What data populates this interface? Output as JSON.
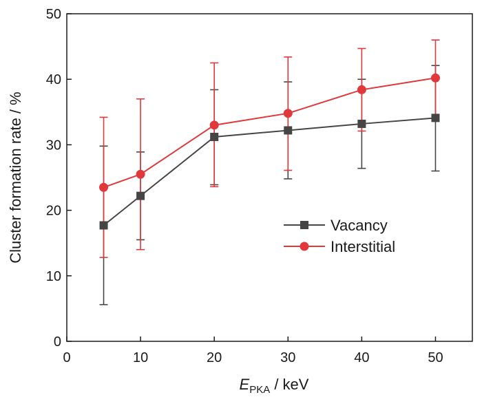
{
  "chart_data": {
    "type": "line",
    "x": [
      5,
      10,
      20,
      30,
      40,
      50
    ],
    "xlim": [
      0,
      55
    ],
    "ylim": [
      0,
      50
    ],
    "xticks": [
      "0",
      "10",
      "20",
      "30",
      "40",
      "50"
    ],
    "yticks": [
      "0",
      "10",
      "20",
      "30",
      "40",
      "50"
    ],
    "xlabel_main": "E",
    "xlabel_sub": "PKA",
    "xlabel_unit": " / keV",
    "ylabel": "Cluster formation rate / %",
    "grid": false,
    "legend_position": "center-right",
    "series": [
      {
        "name": "Vacancy",
        "color": "#454545",
        "marker": "square",
        "values": [
          17.7,
          22.2,
          31.2,
          32.2,
          33.2,
          34.1
        ],
        "err_low": [
          5.6,
          15.5,
          23.9,
          24.8,
          26.4,
          26.0
        ],
        "err_high": [
          29.8,
          28.9,
          38.4,
          39.6,
          40.0,
          42.1
        ]
      },
      {
        "name": "Interstitial",
        "color": "#e0383b",
        "marker": "circle",
        "values": [
          23.5,
          25.5,
          33.0,
          34.8,
          38.4,
          40.2
        ],
        "err_low": [
          12.8,
          14.0,
          23.6,
          26.1,
          32.1,
          34.4
        ],
        "err_high": [
          34.2,
          37.0,
          42.5,
          43.4,
          44.7,
          46.0
        ]
      }
    ]
  }
}
